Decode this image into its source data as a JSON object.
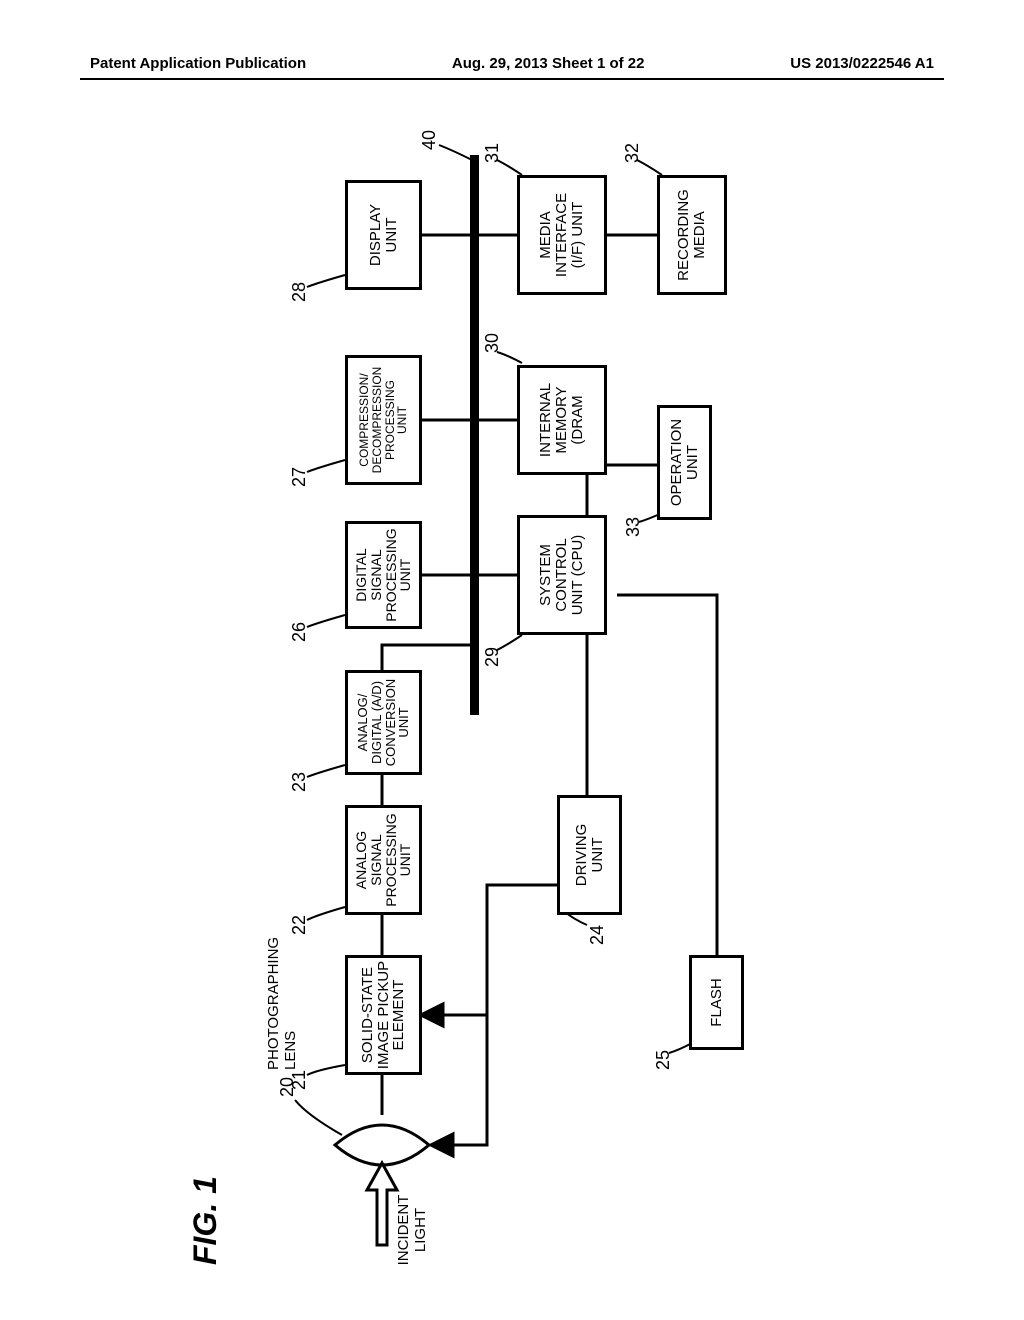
{
  "header": {
    "left": "Patent Application Publication",
    "center": "Aug. 29, 2013  Sheet 1 of 22",
    "right": "US 2013/0222546 A1"
  },
  "figure": {
    "title": "FIG. 1",
    "incident_light_label": "INCIDENT\nLIGHT",
    "lens_label": "PHOTOGRAPHING\nLENS",
    "ref": {
      "lens": "20",
      "sensor": "21",
      "analog_proc": "22",
      "ad": "23",
      "dsp": "26",
      "compress": "27",
      "display": "28",
      "cpu": "29",
      "dram": "30",
      "media_if": "31",
      "rec_media": "32",
      "op_unit": "33",
      "driving": "24",
      "flash": "25",
      "bus": "40"
    },
    "blocks": {
      "sensor": "SOLID-STATE\nIMAGE PICKUP\nELEMENT",
      "analog_proc": "ANALOG\nSIGNAL\nPROCESSING\nUNIT",
      "ad": "ANALOG/\nDIGITAL (A/D)\nCONVERSION\nUNIT",
      "dsp": "DIGITAL\nSIGNAL\nPROCESSING\nUNIT",
      "compress": "COMPRESSION/\nDECOMPRESSION\nPROCESSING\nUNIT",
      "display": "DISPLAY\nUNIT",
      "cpu": "SYSTEM\nCONTROL\nUNIT (CPU)",
      "dram": "INTERNAL\nMEMORY\n(DRAM",
      "media_if": "MEDIA\nINTERFACE\n(I/F) UNIT",
      "rec_media": "RECORDING\nMEDIA",
      "op_unit": "OPERATION\nUNIT",
      "driving": "DRIVING\nUNIT",
      "flash": "FLASH"
    }
  }
}
